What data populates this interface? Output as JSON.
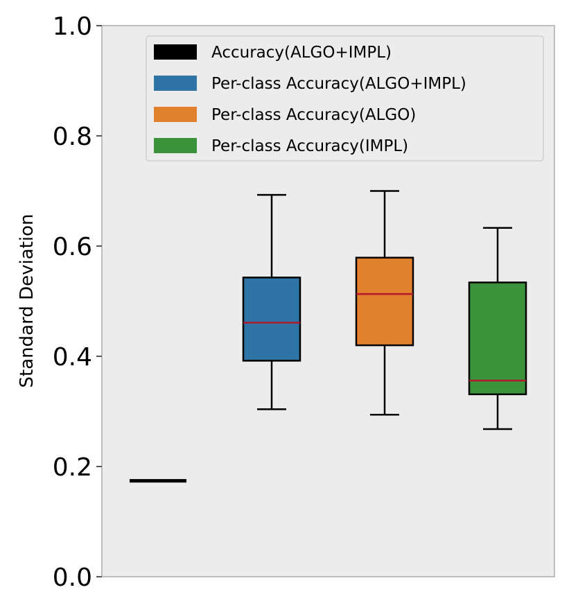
{
  "chart_data": {
    "type": "box",
    "ylabel": "Standard Deviation",
    "xlabel": "",
    "title": "",
    "ylim": [
      0.0,
      1.0
    ],
    "yticks": [
      "0.0",
      "0.2",
      "0.4",
      "0.6",
      "0.8",
      "1.0"
    ],
    "grid": false,
    "legend_placement": "top-right",
    "background_color": "#ececec",
    "series": [
      {
        "name": "Accuracy(ALGO+IMPL)",
        "color": "#000000",
        "min": 0.174,
        "q1": 0.174,
        "median": 0.174,
        "q3": 0.174,
        "max": 0.174
      },
      {
        "name": "Per-class Accuracy(ALGO+IMPL)",
        "color": "#2e75a5",
        "min": 0.304,
        "q1": 0.392,
        "median": 0.461,
        "q3": 0.543,
        "max": 0.693
      },
      {
        "name": "Per-class Accuracy(ALGO)",
        "color": "#e2812d",
        "min": 0.294,
        "q1": 0.42,
        "median": 0.513,
        "q3": 0.579,
        "max": 0.7
      },
      {
        "name": "Per-class Accuracy(IMPL)",
        "color": "#3a923a",
        "min": 0.268,
        "q1": 0.331,
        "median": 0.356,
        "q3": 0.534,
        "max": 0.633
      }
    ],
    "median_color": "#b2172b"
  }
}
